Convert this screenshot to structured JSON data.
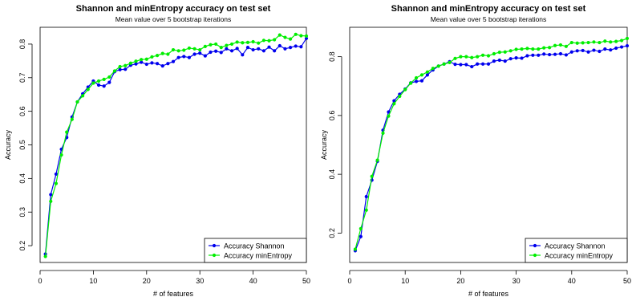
{
  "chart_data": [
    {
      "type": "line",
      "title": "Shannon and minEntropy accuracy on test set",
      "subtitle": "Mean value over 5 bootstrap iterations",
      "xlabel": "# of features",
      "ylabel": "Accuracy",
      "xlim": [
        0,
        50
      ],
      "ylim": [
        0.15,
        0.85
      ],
      "xticks": [
        0,
        10,
        20,
        30,
        40,
        50
      ],
      "yticks": [
        0.2,
        0.3,
        0.4,
        0.5,
        0.6,
        0.7,
        0.8
      ],
      "ytick_labels": [
        "0.2",
        "0.3",
        "0.4",
        "0.5",
        "0.6",
        "0.7",
        "0.8"
      ],
      "legend_position": "bottom-right",
      "grid": false,
      "x": [
        1,
        2,
        3,
        4,
        5,
        6,
        7,
        8,
        9,
        10,
        11,
        12,
        13,
        14,
        15,
        16,
        17,
        18,
        19,
        20,
        21,
        22,
        23,
        24,
        25,
        26,
        27,
        28,
        29,
        30,
        31,
        32,
        33,
        34,
        35,
        36,
        37,
        38,
        39,
        40,
        41,
        42,
        43,
        44,
        45,
        46,
        47,
        48,
        49,
        50
      ],
      "series": [
        {
          "name": "Accuracy Shannon",
          "color": "#0000ee",
          "values": [
            0.175,
            0.352,
            0.413,
            0.487,
            0.522,
            0.583,
            0.628,
            0.652,
            0.672,
            0.69,
            0.678,
            0.675,
            0.686,
            0.718,
            0.724,
            0.725,
            0.737,
            0.741,
            0.746,
            0.74,
            0.744,
            0.742,
            0.735,
            0.742,
            0.748,
            0.76,
            0.763,
            0.76,
            0.77,
            0.773,
            0.765,
            0.776,
            0.779,
            0.775,
            0.786,
            0.78,
            0.787,
            0.768,
            0.79,
            0.783,
            0.786,
            0.78,
            0.791,
            0.78,
            0.795,
            0.786,
            0.79,
            0.794,
            0.792,
            0.817
          ]
        },
        {
          "name": "Accuracy minEntropy",
          "color": "#00ee00",
          "values": [
            0.168,
            0.332,
            0.385,
            0.47,
            0.538,
            0.576,
            0.628,
            0.646,
            0.665,
            0.684,
            0.69,
            0.695,
            0.702,
            0.72,
            0.733,
            0.736,
            0.743,
            0.749,
            0.754,
            0.755,
            0.762,
            0.766,
            0.772,
            0.77,
            0.783,
            0.78,
            0.782,
            0.788,
            0.786,
            0.783,
            0.793,
            0.798,
            0.8,
            0.79,
            0.796,
            0.8,
            0.806,
            0.804,
            0.805,
            0.807,
            0.803,
            0.811,
            0.81,
            0.813,
            0.827,
            0.82,
            0.815,
            0.829,
            0.825,
            0.824
          ]
        }
      ]
    },
    {
      "type": "line",
      "title": "Shannon and minEntropy accuracy on test set",
      "subtitle": "Mean value over 5 bootstrap iterations",
      "xlabel": "# of features",
      "ylabel": "Accuracy",
      "xlim": [
        0,
        50
      ],
      "ylim": [
        0.1,
        0.9
      ],
      "xticks": [
        0,
        10,
        20,
        30,
        40,
        50
      ],
      "yticks": [
        0.2,
        0.4,
        0.6,
        0.8
      ],
      "ytick_labels": [
        "0.2",
        "0.4",
        "0.6",
        "0.8"
      ],
      "legend_position": "bottom-right",
      "grid": false,
      "x": [
        1,
        2,
        3,
        4,
        5,
        6,
        7,
        8,
        9,
        10,
        11,
        12,
        13,
        14,
        15,
        16,
        17,
        18,
        19,
        20,
        21,
        22,
        23,
        24,
        25,
        26,
        27,
        28,
        29,
        30,
        31,
        32,
        33,
        34,
        35,
        36,
        37,
        38,
        39,
        40,
        41,
        42,
        43,
        44,
        45,
        46,
        47,
        48,
        49,
        50
      ],
      "series": [
        {
          "name": "Accuracy Shannon",
          "color": "#0000ee",
          "values": [
            0.14,
            0.188,
            0.324,
            0.38,
            0.444,
            0.55,
            0.612,
            0.65,
            0.672,
            0.69,
            0.711,
            0.716,
            0.718,
            0.738,
            0.755,
            0.768,
            0.775,
            0.783,
            0.774,
            0.773,
            0.773,
            0.766,
            0.775,
            0.775,
            0.775,
            0.785,
            0.788,
            0.785,
            0.793,
            0.796,
            0.795,
            0.803,
            0.805,
            0.805,
            0.809,
            0.807,
            0.808,
            0.81,
            0.806,
            0.816,
            0.82,
            0.821,
            0.816,
            0.822,
            0.818,
            0.826,
            0.823,
            0.829,
            0.833,
            0.837
          ]
        },
        {
          "name": "Accuracy minEntropy",
          "color": "#00ee00",
          "values": [
            0.145,
            0.215,
            0.278,
            0.393,
            0.448,
            0.54,
            0.598,
            0.64,
            0.665,
            0.688,
            0.71,
            0.728,
            0.738,
            0.748,
            0.76,
            0.768,
            0.775,
            0.78,
            0.794,
            0.8,
            0.8,
            0.797,
            0.8,
            0.805,
            0.803,
            0.81,
            0.815,
            0.816,
            0.82,
            0.825,
            0.826,
            0.828,
            0.826,
            0.826,
            0.83,
            0.831,
            0.838,
            0.84,
            0.835,
            0.848,
            0.846,
            0.847,
            0.848,
            0.85,
            0.848,
            0.853,
            0.85,
            0.852,
            0.855,
            0.862
          ]
        }
      ]
    }
  ]
}
